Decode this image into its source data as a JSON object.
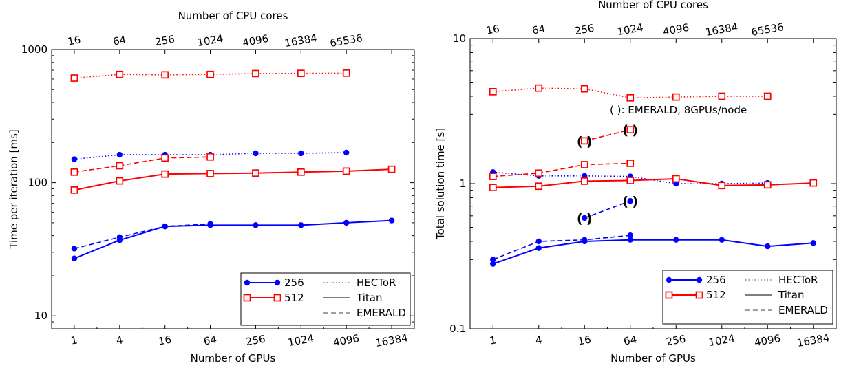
{
  "chart_data": [
    {
      "type": "line",
      "xscale": "log2",
      "yscale": "log10",
      "x_ticks": [
        "1",
        "4",
        "16",
        "64",
        "256",
        "1024",
        "4096",
        "16384"
      ],
      "top_ticks": [
        "16",
        "64",
        "256",
        "1024",
        "4096",
        "16384",
        "65536"
      ],
      "xlim": [
        0.5,
        32768
      ],
      "ylim": [
        8,
        1000
      ],
      "y_ticks": [
        "10",
        "100",
        "1000"
      ],
      "xlabel": "Number of GPUs",
      "top_xlabel": "Number of CPU cores",
      "ylabel": "Time per iteration [ms]",
      "grid": false,
      "legend_placement": "bottom-right",
      "legend": {
        "sizes": [
          "256",
          "512"
        ],
        "machines": [
          "HECToR",
          "Titan",
          "EMERALD"
        ]
      },
      "series": [
        {
          "size": "256",
          "machine": "HECToR",
          "color": "#0000ff",
          "marker": "circle",
          "linestyle": "dotted",
          "x": [
            1,
            4,
            16,
            64,
            256,
            1024,
            4096
          ],
          "y": [
            150,
            162,
            162,
            162,
            166,
            166,
            168
          ]
        },
        {
          "size": "256",
          "machine": "Titan",
          "color": "#0000ff",
          "marker": "circle",
          "linestyle": "solid",
          "x": [
            1,
            4,
            16,
            64,
            256,
            1024,
            4096,
            16384
          ],
          "y": [
            27,
            37,
            47,
            48,
            48,
            48,
            50,
            52
          ]
        },
        {
          "size": "256",
          "machine": "EMERALD",
          "color": "#0000ff",
          "marker": "circle",
          "linestyle": "dashed",
          "x": [
            1,
            4,
            16,
            64
          ],
          "y": [
            32,
            39,
            47,
            49
          ]
        },
        {
          "size": "512",
          "machine": "HECToR",
          "color": "#ff0000",
          "marker": "square",
          "linestyle": "dotted",
          "x": [
            1,
            4,
            16,
            64,
            256,
            1024,
            4096
          ],
          "y": [
            610,
            650,
            645,
            650,
            660,
            662,
            665
          ]
        },
        {
          "size": "512",
          "machine": "Titan",
          "color": "#ff0000",
          "marker": "square",
          "linestyle": "solid",
          "x": [
            1,
            4,
            16,
            64,
            256,
            1024,
            4096,
            16384
          ],
          "y": [
            88,
            103,
            116,
            117,
            118,
            120,
            122,
            126
          ]
        },
        {
          "size": "512",
          "machine": "EMERALD",
          "color": "#ff0000",
          "marker": "square",
          "linestyle": "dashed",
          "x": [
            1,
            4,
            16,
            64
          ],
          "y": [
            120,
            134,
            153,
            156
          ]
        }
      ]
    },
    {
      "type": "line",
      "xscale": "log2",
      "yscale": "log10",
      "x_ticks": [
        "1",
        "4",
        "16",
        "64",
        "256",
        "1024",
        "4096",
        "16384"
      ],
      "top_ticks": [
        "16",
        "64",
        "256",
        "1024",
        "4096",
        "16384",
        "65536"
      ],
      "xlim": [
        0.5,
        32768
      ],
      "ylim": [
        0.1,
        10
      ],
      "y_ticks": [
        "0.1",
        "1",
        "10"
      ],
      "xlabel": "Number of GPUs",
      "top_xlabel": "Number of CPU cores",
      "ylabel": "Total solution time [s]",
      "grid": false,
      "legend_placement": "bottom-right",
      "legend": {
        "sizes": [
          "256",
          "512"
        ],
        "machines": [
          "HECToR",
          "Titan",
          "EMERALD"
        ]
      },
      "annotation": "( ): EMERALD, 8GPUs/node",
      "annotation_marker": "( )",
      "series": [
        {
          "size": "256",
          "machine": "HECToR",
          "color": "#0000ff",
          "marker": "circle",
          "linestyle": "dotted",
          "x": [
            1,
            4,
            16,
            64,
            256,
            1024,
            4096
          ],
          "y": [
            1.2,
            1.13,
            1.13,
            1.12,
            1.0,
            1.0,
            1.01
          ]
        },
        {
          "size": "256",
          "machine": "Titan",
          "color": "#0000ff",
          "marker": "circle",
          "linestyle": "solid",
          "x": [
            1,
            4,
            16,
            64,
            256,
            1024,
            4096,
            16384
          ],
          "y": [
            0.28,
            0.36,
            0.4,
            0.41,
            0.41,
            0.41,
            0.37,
            0.39
          ]
        },
        {
          "size": "256",
          "machine": "EMERALD",
          "color": "#0000ff",
          "marker": "circle",
          "linestyle": "dashed",
          "x": [
            1,
            4,
            16,
            64
          ],
          "y": [
            0.3,
            0.4,
            0.41,
            0.44
          ]
        },
        {
          "size": "256",
          "machine": "EMERALD 8GPUs/node",
          "color": "#0000ff",
          "marker": "circle",
          "linestyle": "dashed",
          "paren": true,
          "x": [
            16,
            64
          ],
          "y": [
            0.58,
            0.76
          ]
        },
        {
          "size": "512",
          "machine": "HECToR",
          "color": "#ff0000",
          "marker": "square",
          "linestyle": "dotted",
          "x": [
            1,
            4,
            16,
            64,
            256,
            1024,
            4096
          ],
          "y": [
            4.3,
            4.55,
            4.5,
            3.9,
            3.95,
            4.0,
            4.0
          ]
        },
        {
          "size": "512",
          "machine": "Titan",
          "color": "#ff0000",
          "marker": "square",
          "linestyle": "solid",
          "x": [
            1,
            4,
            16,
            64,
            256,
            1024,
            4096,
            16384
          ],
          "y": [
            0.94,
            0.96,
            1.04,
            1.05,
            1.08,
            0.97,
            0.98,
            1.01
          ]
        },
        {
          "size": "512",
          "machine": "EMERALD",
          "color": "#ff0000",
          "marker": "square",
          "linestyle": "dashed",
          "x": [
            1,
            4,
            16,
            64
          ],
          "y": [
            1.12,
            1.18,
            1.35,
            1.38
          ]
        },
        {
          "size": "512",
          "machine": "EMERALD 8GPUs/node",
          "color": "#ff0000",
          "marker": "square",
          "linestyle": "dashed",
          "paren": true,
          "x": [
            16,
            64
          ],
          "y": [
            1.97,
            2.35
          ]
        }
      ]
    }
  ]
}
